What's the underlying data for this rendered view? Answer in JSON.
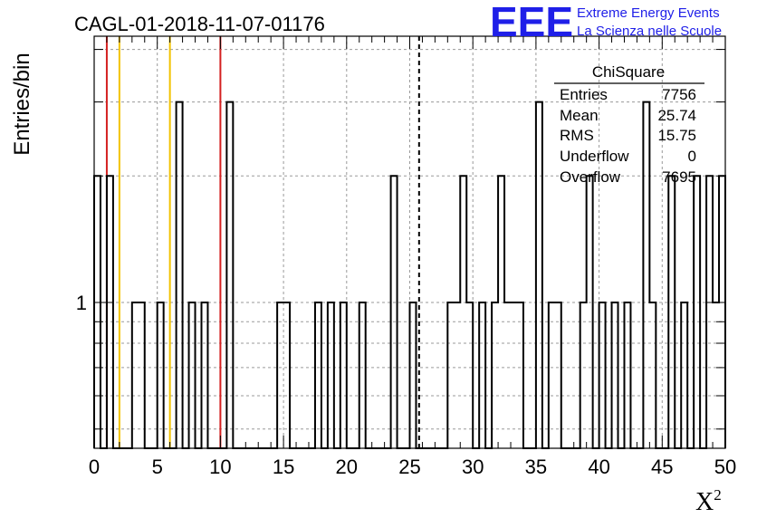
{
  "title": "CAGL-01-2018-11-07-01176",
  "logo": {
    "mark": "EEE",
    "line1": "Extreme Energy Events",
    "line2": "La Scienza nelle Scuole",
    "color": "#1f1fe8"
  },
  "stats": {
    "header": "ChiSquare",
    "rows": [
      {
        "label": "Entries",
        "value": "7756"
      },
      {
        "label": "Mean",
        "value": "25.74"
      },
      {
        "label": "RMS",
        "value": "15.75"
      },
      {
        "label": "Underflow",
        "value": "0"
      },
      {
        "label": "Overflow",
        "value": "7695"
      }
    ]
  },
  "chart_data": {
    "type": "histogram",
    "xlabel": "X",
    "xlabel_sup": "2",
    "ylabel": "Entries/bin",
    "xlim": [
      0,
      50
    ],
    "ylog": true,
    "ylim": [
      0.45,
      4.3
    ],
    "x_ticks": [
      "0",
      "5",
      "10",
      "15",
      "20",
      "25",
      "30",
      "35",
      "40",
      "45",
      "50"
    ],
    "y_tick_labels": [
      {
        "value": 1,
        "label": "1"
      }
    ],
    "grid": true,
    "bin_width": 0.5,
    "bins": [
      {
        "x": 0.0,
        "count": 2
      },
      {
        "x": 1.0,
        "count": 2
      },
      {
        "x": 3.0,
        "count": 1
      },
      {
        "x": 3.5,
        "count": 1
      },
      {
        "x": 5.0,
        "count": 1
      },
      {
        "x": 6.5,
        "count": 3
      },
      {
        "x": 7.5,
        "count": 1
      },
      {
        "x": 8.5,
        "count": 1
      },
      {
        "x": 10.5,
        "count": 3
      },
      {
        "x": 14.5,
        "count": 1
      },
      {
        "x": 15.0,
        "count": 1
      },
      {
        "x": 17.5,
        "count": 1
      },
      {
        "x": 18.5,
        "count": 1
      },
      {
        "x": 19.5,
        "count": 1
      },
      {
        "x": 21.0,
        "count": 1
      },
      {
        "x": 23.5,
        "count": 2
      },
      {
        "x": 25.0,
        "count": 1
      },
      {
        "x": 28.0,
        "count": 1
      },
      {
        "x": 28.5,
        "count": 1
      },
      {
        "x": 29.0,
        "count": 2
      },
      {
        "x": 29.5,
        "count": 1
      },
      {
        "x": 30.5,
        "count": 1
      },
      {
        "x": 31.5,
        "count": 1
      },
      {
        "x": 32.0,
        "count": 2
      },
      {
        "x": 32.5,
        "count": 1
      },
      {
        "x": 33.0,
        "count": 1
      },
      {
        "x": 33.5,
        "count": 1
      },
      {
        "x": 35.0,
        "count": 3
      },
      {
        "x": 36.0,
        "count": 1
      },
      {
        "x": 36.5,
        "count": 1
      },
      {
        "x": 38.5,
        "count": 1
      },
      {
        "x": 39.0,
        "count": 2
      },
      {
        "x": 40.0,
        "count": 1
      },
      {
        "x": 41.0,
        "count": 1
      },
      {
        "x": 42.0,
        "count": 1
      },
      {
        "x": 43.5,
        "count": 3
      },
      {
        "x": 44.0,
        "count": 1
      },
      {
        "x": 45.5,
        "count": 2
      },
      {
        "x": 46.5,
        "count": 1
      },
      {
        "x": 47.5,
        "count": 2
      },
      {
        "x": 48.5,
        "count": 2
      },
      {
        "x": 49.0,
        "count": 1
      },
      {
        "x": 49.5,
        "count": 2
      }
    ],
    "markers": [
      {
        "x": 1.0,
        "color": "#d42020",
        "style": "solid"
      },
      {
        "x": 2.0,
        "color": "#f2c200",
        "style": "solid"
      },
      {
        "x": 6.0,
        "color": "#f2c200",
        "style": "solid"
      },
      {
        "x": 10.0,
        "color": "#d42020",
        "style": "solid"
      },
      {
        "x": 25.74,
        "color": "#000000",
        "style": "dashed"
      }
    ]
  }
}
